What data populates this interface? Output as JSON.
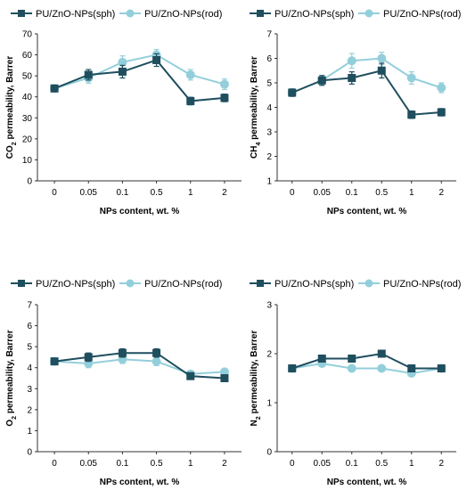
{
  "colors": {
    "sph": "#1f4e5f",
    "rod": "#93cfdb",
    "axis": "#333333"
  },
  "legend": [
    {
      "name": "PU/ZnO-NPs(sph)",
      "marker": "square",
      "color": "#1f4e5f"
    },
    {
      "name": "PU/ZnO-NPs(rod)",
      "marker": "circle",
      "color": "#93cfdb"
    }
  ],
  "chart_data": [
    {
      "type": "line",
      "panel": "top-left",
      "categories": [
        "0",
        "0.05",
        "0.1",
        "0.5",
        "1",
        "2"
      ],
      "xlabel": "NPs content, wt. %",
      "ylabel_parts": [
        "CO",
        "2",
        " permeability, Barrer"
      ],
      "ylim": [
        0,
        70
      ],
      "yticks": [
        0,
        10,
        20,
        30,
        40,
        50,
        60,
        70
      ],
      "grid": false,
      "legend_position": "top",
      "series": [
        {
          "name": "PU/ZnO-NPs(sph)",
          "values": [
            44,
            50.5,
            52,
            57.5,
            38,
            39.5
          ],
          "errors": [
            1.5,
            2.5,
            3,
            3,
            1.8,
            1.8
          ]
        },
        {
          "name": "PU/ZnO-NPs(rod)",
          "values": [
            44,
            49,
            56.5,
            60,
            50.5,
            46
          ],
          "errors": [
            1.5,
            2.5,
            3,
            2.5,
            2.5,
            2.5
          ]
        }
      ]
    },
    {
      "type": "line",
      "panel": "top-right",
      "categories": [
        "0",
        "0.05",
        "0.1",
        "0.5",
        "1",
        "2"
      ],
      "xlabel": "NPs content, wt. %",
      "ylabel_parts": [
        "CH",
        "4",
        " permeability, Barrer"
      ],
      "ylim": [
        1,
        7
      ],
      "yticks": [
        1,
        2,
        3,
        4,
        5,
        6,
        7
      ],
      "grid": false,
      "legend_position": "top",
      "series": [
        {
          "name": "PU/ZnO-NPs(sph)",
          "values": [
            4.6,
            5.1,
            5.2,
            5.5,
            3.7,
            3.8
          ],
          "errors": [
            0.15,
            0.2,
            0.25,
            0.3,
            0.15,
            0.15
          ]
        },
        {
          "name": "PU/ZnO-NPs(rod)",
          "values": [
            4.6,
            5.1,
            5.9,
            6.0,
            5.2,
            4.8
          ],
          "errors": [
            0.15,
            0.2,
            0.3,
            0.25,
            0.25,
            0.2
          ]
        }
      ]
    },
    {
      "type": "line",
      "panel": "bottom-left",
      "categories": [
        "0",
        "0.05",
        "0.1",
        "0.5",
        "1",
        "2"
      ],
      "xlabel": "NPs content, wt. %",
      "ylabel_parts": [
        "O",
        "2",
        " permeability, Barrer"
      ],
      "ylim": [
        0,
        7
      ],
      "yticks": [
        0,
        1,
        2,
        3,
        4,
        5,
        6,
        7
      ],
      "grid": false,
      "legend_position": "top",
      "series": [
        {
          "name": "PU/ZnO-NPs(sph)",
          "values": [
            4.3,
            4.5,
            4.7,
            4.7,
            3.6,
            3.5
          ],
          "errors": [
            0.15,
            0.2,
            0.2,
            0.2,
            0.1,
            0.1
          ]
        },
        {
          "name": "PU/ZnO-NPs(rod)",
          "values": [
            4.3,
            4.2,
            4.4,
            4.3,
            3.7,
            3.8
          ],
          "errors": [
            0.15,
            0.2,
            0.2,
            0.2,
            0.1,
            0.1
          ]
        }
      ]
    },
    {
      "type": "line",
      "panel": "bottom-right",
      "categories": [
        "0",
        "0.05",
        "0.1",
        "0.5",
        "1",
        "2"
      ],
      "xlabel": "NPs content, wt. %",
      "ylabel_parts": [
        "N",
        "2",
        " permeability, Barrer"
      ],
      "ylim": [
        0,
        3
      ],
      "yticks": [
        0,
        1,
        2,
        3
      ],
      "grid": false,
      "legend_position": "top",
      "series": [
        {
          "name": "PU/ZnO-NPs(sph)",
          "values": [
            1.7,
            1.9,
            1.9,
            2.0,
            1.7,
            1.7
          ],
          "errors": [
            0.05,
            0.06,
            0.06,
            0.06,
            0.05,
            0.05
          ]
        },
        {
          "name": "PU/ZnO-NPs(rod)",
          "values": [
            1.7,
            1.8,
            1.7,
            1.7,
            1.6,
            1.7
          ],
          "errors": [
            0.05,
            0.06,
            0.06,
            0.06,
            0.05,
            0.05
          ]
        }
      ]
    }
  ]
}
